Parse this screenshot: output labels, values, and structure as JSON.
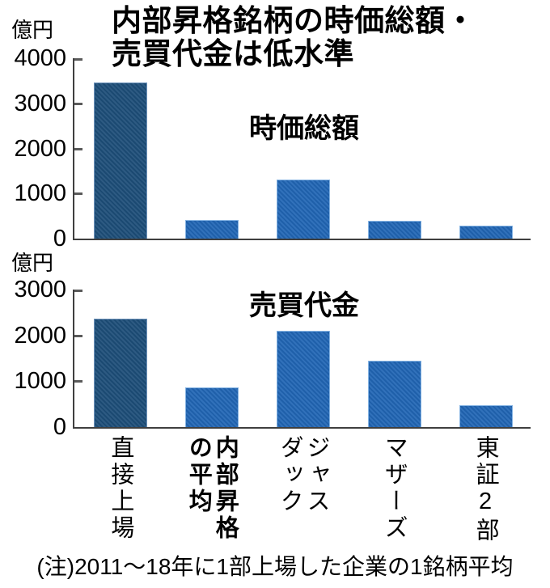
{
  "title": {
    "line1": "内部昇格銘柄の時価総額・",
    "line2": "売買代金は低水準"
  },
  "note": "(注)2011〜18年に1部上場した企業の1銘柄平均",
  "colors": {
    "bar_dark": "#1d4e79",
    "bar_light": "#2166b5",
    "axis": "#3f3f3f"
  },
  "category_labels": [
    {
      "text": "直接上場",
      "bold": false
    },
    {
      "text": "内部昇格の平均",
      "bold": true
    },
    {
      "text": "ジャスダック",
      "bold": false
    },
    {
      "text": "マザーズ",
      "bold": false
    },
    {
      "text": "東証2部",
      "bold": false
    }
  ],
  "chart_data": [
    {
      "type": "bar",
      "title": "時価総額",
      "unit": "億円",
      "categories": [
        "直接上場",
        "内部昇格の平均",
        "ジャスダック",
        "マザーズ",
        "東証2部"
      ],
      "values": [
        3450,
        400,
        1300,
        380,
        270
      ],
      "ylim": [
        0,
        4000
      ],
      "yticks": [
        0,
        1000,
        2000,
        3000,
        4000
      ],
      "bar_styles": [
        "dark",
        "light",
        "light",
        "light",
        "light"
      ],
      "grid": false,
      "legend": false
    },
    {
      "type": "bar",
      "title": "売買代金",
      "unit": "億円",
      "categories": [
        "直接上場",
        "内部昇格の平均",
        "ジャスダック",
        "マザーズ",
        "東証2部"
      ],
      "values": [
        2350,
        850,
        2080,
        1430,
        460
      ],
      "ylim": [
        0,
        3000
      ],
      "yticks": [
        0,
        1000,
        2000,
        3000
      ],
      "bar_styles": [
        "dark",
        "light",
        "light",
        "light",
        "light"
      ],
      "grid": false,
      "legend": false
    }
  ]
}
